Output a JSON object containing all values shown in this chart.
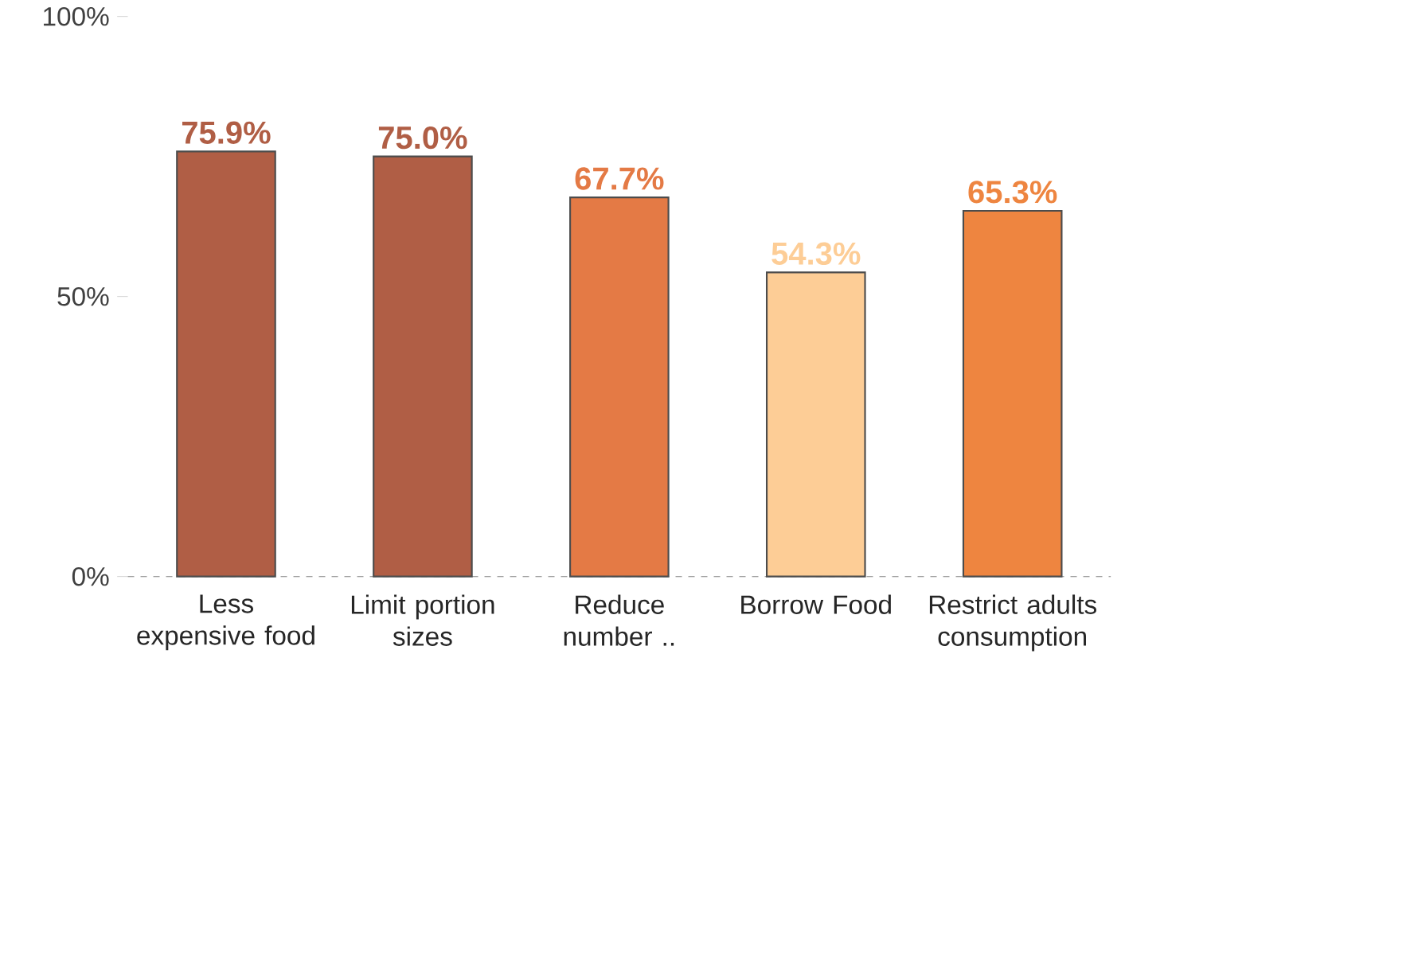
{
  "chart_data": {
    "type": "bar",
    "categories": [
      "Less expensive food",
      "Limit portion sizes",
      "Reduce number ..",
      "Borrow Food",
      "Restrict adults consumption"
    ],
    "values": [
      75.9,
      75.0,
      67.7,
      54.3,
      65.3
    ],
    "colors": [
      "#b05e45",
      "#b05e45",
      "#e47a45",
      "#fdcd96",
      "#ee8540"
    ],
    "value_labels": [
      "75.9%",
      "75.0%",
      "67.7%",
      "54.3%",
      "65.3%"
    ],
    "ylim": [
      0,
      100
    ],
    "yticks": [
      {
        "value": 0,
        "label": "0%"
      },
      {
        "value": 50,
        "label": "50%"
      },
      {
        "value": 100,
        "label": "100%"
      }
    ],
    "grid": false
  }
}
